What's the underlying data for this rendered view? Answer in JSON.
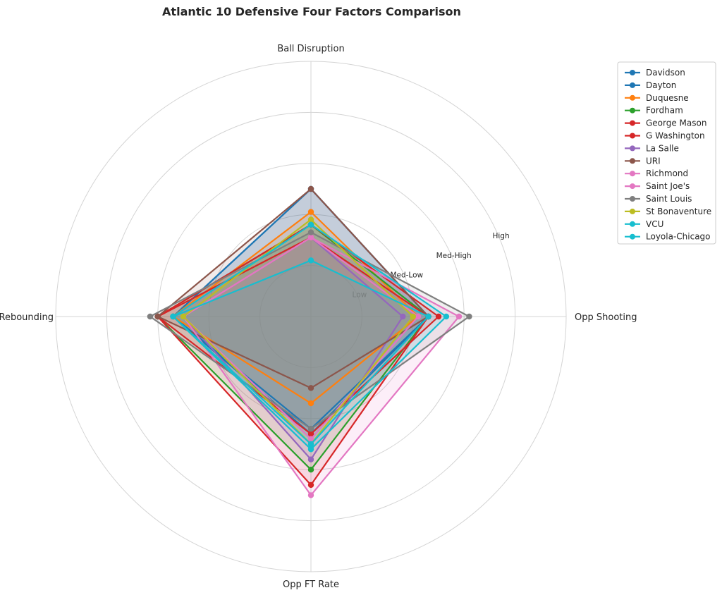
{
  "chart_data": {
    "type": "radar",
    "title": "Atlantic 10 Defensive Four Factors Comparison",
    "axes": [
      "Ball Disruption",
      "Opp Shooting",
      "Opp FT Rate",
      "Def Rebounding"
    ],
    "ring_labels": [
      "Low",
      "Med-Low",
      "Med-High",
      "High"
    ],
    "rlim": [
      0,
      5
    ],
    "grid": true,
    "legend_position": "top-right",
    "series": [
      {
        "name": "Davidson",
        "color": "#1f77b4",
        "values": [
          2.5,
          2.3,
          2.2,
          2.7
        ]
      },
      {
        "name": "Dayton",
        "color": "#1f77b4",
        "values": [
          2.5,
          2.3,
          2.3,
          2.7
        ]
      },
      {
        "name": "Duquesne",
        "color": "#ff7f0e",
        "values": [
          2.05,
          2.1,
          1.7,
          2.7
        ]
      },
      {
        "name": "Fordham",
        "color": "#2ca02c",
        "values": [
          1.8,
          2.3,
          3.0,
          3.0
        ]
      },
      {
        "name": "George Mason",
        "color": "#d62728",
        "values": [
          1.8,
          2.5,
          2.3,
          3.0
        ]
      },
      {
        "name": "G Washington",
        "color": "#d62728",
        "values": [
          1.55,
          2.3,
          3.3,
          3.0
        ]
      },
      {
        "name": "La Salle",
        "color": "#9467bd",
        "values": [
          1.55,
          1.8,
          2.8,
          2.5
        ]
      },
      {
        "name": "URI",
        "color": "#8c564b",
        "values": [
          2.5,
          2.3,
          1.4,
          3.0
        ]
      },
      {
        "name": "Richmond",
        "color": "#e377c2",
        "values": [
          1.55,
          2.9,
          3.5,
          2.5
        ]
      },
      {
        "name": "Saint Joe's",
        "color": "#e377c2",
        "values": [
          1.55,
          2.1,
          2.4,
          2.5
        ]
      },
      {
        "name": "Saint Louis",
        "color": "#7f7f7f",
        "values": [
          1.65,
          3.1,
          2.2,
          3.15
        ]
      },
      {
        "name": "St Bonaventure",
        "color": "#bcbd22",
        "values": [
          1.9,
          2.0,
          2.5,
          2.5
        ]
      },
      {
        "name": "VCU",
        "color": "#17becf",
        "values": [
          1.8,
          2.65,
          2.6,
          2.7
        ]
      },
      {
        "name": "Loyola-Chicago",
        "color": "#17becf",
        "values": [
          1.1,
          2.3,
          2.5,
          2.7
        ]
      }
    ]
  }
}
